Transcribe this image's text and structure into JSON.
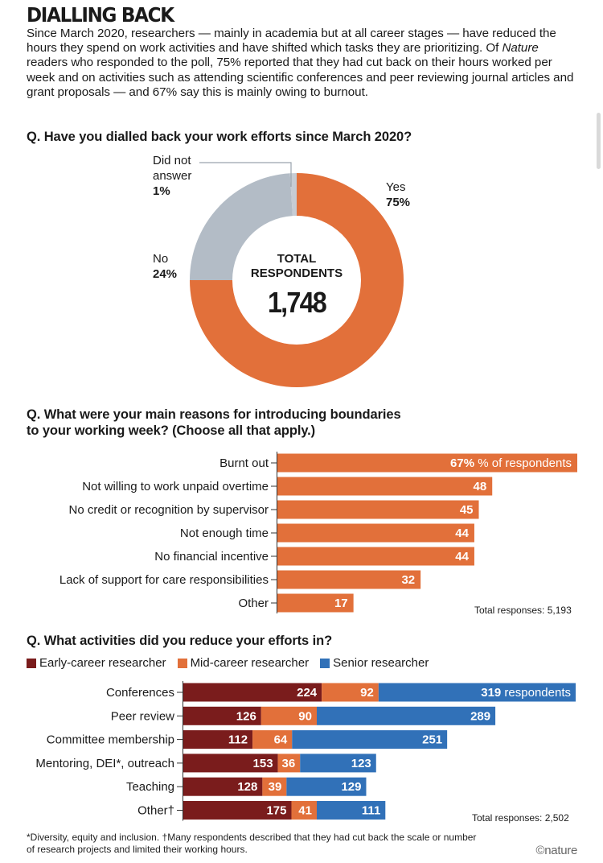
{
  "title": "DIALLING BACK",
  "intro": {
    "part1": "Since March 2020, researchers — mainly in academia but at all career stages — have reduced the hours they spend on work activities and have shifted which tasks they are prioritizing. Of ",
    "italic": "Nature",
    "part2": " readers who responded to the poll, 75% reported that they had cut back on their hours worked per week and on activities such as attending scientific conferences and peer reviewing journal articles and grant proposals — and 67% say this is mainly owing to burnout."
  },
  "colors": {
    "orange": "#e2703a",
    "grey": "#b3bcc6",
    "dark_red": "#7a1c1c",
    "blue": "#3171b8"
  },
  "chart_data": [
    {
      "type": "pie",
      "title": "Q. Have you dialled back your work efforts since March 2020?",
      "center_label": "TOTAL RESPONDENTS",
      "center_label_line1": "TOTAL",
      "center_label_line2": "RESPONDENTS",
      "center_value": "1,748",
      "slices": [
        {
          "label": "Yes",
          "value": 75,
          "value_label": "75%",
          "color": "#e2703a"
        },
        {
          "label": "No",
          "value": 24,
          "value_label": "24%",
          "color": "#b3bcc6"
        },
        {
          "label": "Did not answer",
          "label_line1": "Did not",
          "label_line2": "answer",
          "value": 1,
          "value_label": "1%",
          "color": "#c6ccd4"
        }
      ]
    },
    {
      "type": "bar",
      "orientation": "horizontal",
      "title": "Q. What were your main reasons for introducing boundaries to your working week? (Choose all that apply.)",
      "title_line1": "Q. What were your main reasons for introducing boundaries",
      "title_line2": "to your working week? (Choose all that apply.)",
      "categories": [
        "Burnt out",
        "Not willing to work unpaid overtime",
        "No credit or recognition by supervisor",
        "Not enough time",
        "No financial incentive",
        "Lack of support for care responsibilities",
        "Other"
      ],
      "values": [
        67,
        48,
        45,
        44,
        44,
        32,
        17
      ],
      "first_value_suffix": "% of respondents",
      "unit": "% of respondents",
      "total_note": "Total responses: 5,193"
    },
    {
      "type": "bar",
      "orientation": "horizontal",
      "stacked": true,
      "title": "Q. What activities did you reduce your efforts in?",
      "categories": [
        "Conferences",
        "Peer review",
        "Committee membership",
        "Mentoring, DEI*, outreach",
        "Teaching",
        "Other†"
      ],
      "series": [
        {
          "name": "Early-career researcher",
          "values": [
            224,
            126,
            112,
            153,
            128,
            175
          ]
        },
        {
          "name": "Mid-career researcher",
          "values": [
            92,
            90,
            64,
            36,
            39,
            41
          ]
        },
        {
          "name": "Senior researcher",
          "values": [
            319,
            289,
            251,
            123,
            129,
            111
          ]
        }
      ],
      "first_value_suffix": " respondents",
      "unit": "respondents",
      "total_note": "Total responses: 2,502"
    }
  ],
  "footnote": "*Diversity, equity and inclusion. †Many respondents described that they had cut back the scale or number of research projects and limited their working hours.",
  "credit": "©nature"
}
